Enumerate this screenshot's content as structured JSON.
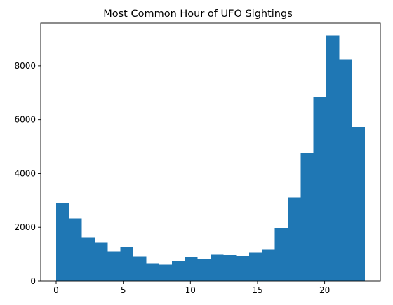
{
  "chart_data": {
    "type": "bar",
    "subtype": "histogram",
    "title": "Most Common Hour of UFO Sightings",
    "xlabel": "",
    "ylabel": "",
    "bin_edges": [
      0,
      0.9583,
      1.9167,
      2.875,
      3.8333,
      4.7917,
      5.75,
      6.7083,
      7.6667,
      8.625,
      9.5833,
      10.5417,
      11.5,
      12.4583,
      13.4167,
      14.375,
      15.3333,
      16.2917,
      17.25,
      18.2083,
      19.1667,
      20.125,
      21.0833,
      22.0417,
      23
    ],
    "values": [
      2920,
      2330,
      1630,
      1450,
      1110,
      1270,
      930,
      670,
      610,
      750,
      880,
      820,
      1000,
      960,
      940,
      1060,
      1180,
      1980,
      3110,
      4770,
      6840,
      9130,
      8250,
      5730
    ],
    "xlim": [
      -1.15,
      24.15
    ],
    "ylim": [
      0,
      9586
    ],
    "xticks": [
      "0",
      "5",
      "10",
      "15",
      "20"
    ],
    "yticks": [
      "0",
      "2000",
      "4000",
      "6000",
      "8000"
    ],
    "grid": false,
    "bar_color": "#1f77b4"
  }
}
